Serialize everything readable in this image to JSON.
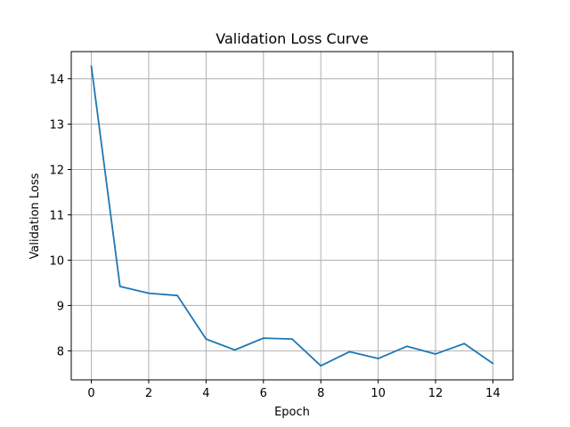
{
  "chart_data": {
    "type": "line",
    "title": "Validation Loss Curve",
    "xlabel": "Epoch",
    "ylabel": "Validation Loss",
    "x": [
      0,
      1,
      2,
      3,
      4,
      5,
      6,
      7,
      8,
      9,
      10,
      11,
      12,
      13,
      14
    ],
    "series": [
      {
        "values": [
          14.28,
          9.42,
          9.27,
          9.22,
          8.26,
          8.02,
          8.28,
          8.26,
          7.67,
          7.98,
          7.83,
          8.1,
          7.93,
          8.16,
          7.72
        ],
        "color": "#1f77b4"
      }
    ],
    "xlim": [
      -0.7,
      14.7
    ],
    "ylim": [
      7.36,
      14.6
    ],
    "xticks": [
      0,
      2,
      4,
      6,
      8,
      10,
      12,
      14
    ],
    "yticks": [
      8,
      9,
      10,
      11,
      12,
      13,
      14
    ],
    "grid": true,
    "legend": "none"
  }
}
